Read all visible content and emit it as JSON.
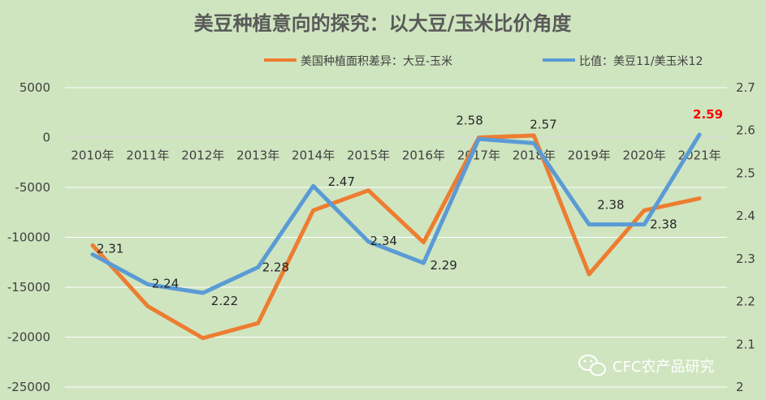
{
  "chart_data": {
    "type": "line",
    "title": "美豆种植意向的探究：以大豆/玉米比价角度",
    "categories": [
      "2010年",
      "2011年",
      "2012年",
      "2013年",
      "2014年",
      "2015年",
      "2016年",
      "2017年",
      "2018年",
      "2019年",
      "2020年",
      "2021年"
    ],
    "series": [
      {
        "name": "美国种植面积差异：大豆-玉米",
        "axis": "left",
        "color": "#ed7d31",
        "values": [
          -10800,
          -16900,
          -20100,
          -18600,
          -7300,
          -5300,
          -10500,
          0,
          200,
          -13700,
          -7300,
          -6100
        ]
      },
      {
        "name": "比值：美豆11/美玉米12",
        "axis": "right",
        "color": "#5b9bd5",
        "values": [
          2.31,
          2.24,
          2.22,
          2.28,
          2.47,
          2.34,
          2.29,
          2.58,
          2.57,
          2.38,
          2.38,
          2.59
        ],
        "data_labels": [
          "2.31",
          "2.24",
          "2.22",
          "2.28",
          "2.47",
          "2.34",
          "2.29",
          "2.58",
          "2.57",
          "2.38",
          "2.38",
          "2.59"
        ],
        "highlight_label_color": "#ff0000"
      }
    ],
    "y_left": {
      "ylim": [
        -25000,
        5000
      ],
      "ticks": [
        "5000",
        "0",
        "-5000",
        "-10000",
        "-15000",
        "-20000",
        "-25000"
      ]
    },
    "y_right": {
      "ylim": [
        2.0,
        2.7
      ],
      "ticks": [
        "2.7",
        "2.6",
        "2.5",
        "2.4",
        "2.3",
        "2.2",
        "2.1",
        "2"
      ]
    },
    "grid": true,
    "legend": "top",
    "watermark": "CFC农产品研究"
  }
}
